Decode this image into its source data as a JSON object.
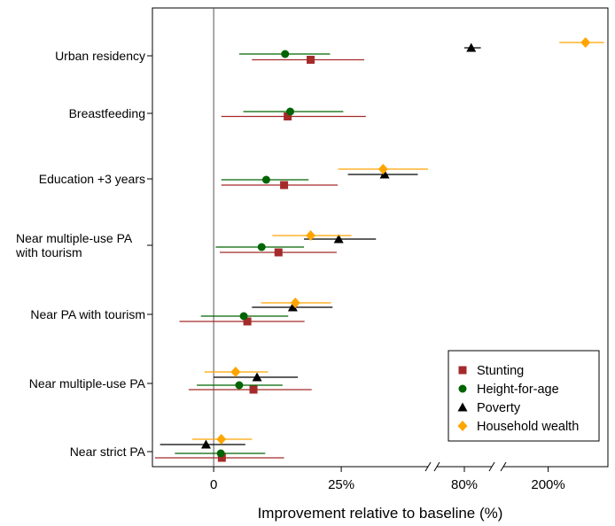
{
  "chart_data": {
    "type": "forest",
    "xlabel": "Improvement relative to baseline (%)",
    "x_axis": {
      "segments": [
        {
          "name": "main",
          "range": [
            -12,
            42
          ]
        },
        {
          "name": "break-1",
          "range": [
            70,
            90
          ]
        },
        {
          "name": "break-2",
          "range": [
            140,
            280
          ]
        }
      ],
      "ticks": [
        {
          "value": 0,
          "label": "0"
        },
        {
          "value": 25,
          "label": "25%"
        },
        {
          "value": 80,
          "label": "80%"
        },
        {
          "value": 200,
          "label": "200%"
        }
      ],
      "reference_line": 0
    },
    "categories": [
      "Urban residency",
      "Breastfeeding",
      "Education +3 years",
      "Near multiple-use PA\nwith tourism",
      "Near PA with tourism",
      "Near multiple-use PA",
      "Near strict PA"
    ],
    "series": [
      {
        "name": "Stunting",
        "color": "#a52a2a",
        "marker": "square",
        "points": [
          {
            "category": "Urban residency",
            "estimate": 19.0,
            "low": 7.5,
            "high": 29.5
          },
          {
            "category": "Breastfeeding",
            "estimate": 14.5,
            "low": 1.5,
            "high": 29.8
          },
          {
            "category": "Education +3 years",
            "estimate": 13.8,
            "low": 1.5,
            "high": 24.3
          },
          {
            "category": "Near multiple-use PA\nwith tourism",
            "estimate": 12.7,
            "low": 1.2,
            "high": 24.1
          },
          {
            "category": "Near PA with tourism",
            "estimate": 6.6,
            "low": -6.7,
            "high": 17.8
          },
          {
            "category": "Near multiple-use PA",
            "estimate": 7.8,
            "low": -4.9,
            "high": 19.2
          },
          {
            "category": "Near strict PA",
            "estimate": 1.6,
            "low": -11.5,
            "high": 13.8
          }
        ]
      },
      {
        "name": "Height-for-age",
        "color": "#006400",
        "marker": "circle",
        "points": [
          {
            "category": "Urban residency",
            "estimate": 14.0,
            "low": 5.0,
            "high": 22.8
          },
          {
            "category": "Breastfeeding",
            "estimate": 15.0,
            "low": 5.8,
            "high": 25.4
          },
          {
            "category": "Education +3 years",
            "estimate": 10.3,
            "low": 1.5,
            "high": 18.6
          },
          {
            "category": "Near multiple-use PA\nwith tourism",
            "estimate": 9.4,
            "low": 0.4,
            "high": 17.7
          },
          {
            "category": "Near PA with tourism",
            "estimate": 5.9,
            "low": -2.5,
            "high": 14.6
          },
          {
            "category": "Near multiple-use PA",
            "estimate": 5.0,
            "low": -3.3,
            "high": 13.5
          },
          {
            "category": "Near strict PA",
            "estimate": 1.4,
            "low": -7.6,
            "high": 10.1
          }
        ]
      },
      {
        "name": "Poverty",
        "color": "#000000",
        "marker": "triangle",
        "points": [
          {
            "category": "Urban residency",
            "estimate": 82.5,
            "low": 80.0,
            "high": 86.0
          },
          {
            "category": "Education +3 years",
            "estimate": 33.5,
            "low": 26.3,
            "high": 40.0
          },
          {
            "category": "Near multiple-use PA\nwith tourism",
            "estimate": 24.5,
            "low": 17.7,
            "high": 31.8
          },
          {
            "category": "Near PA with tourism",
            "estimate": 15.5,
            "low": 7.5,
            "high": 23.3
          },
          {
            "category": "Near multiple-use PA",
            "estimate": 8.5,
            "low": 0.0,
            "high": 16.5
          },
          {
            "category": "Near strict PA",
            "estimate": -1.5,
            "low": -10.5,
            "high": 6.2
          }
        ]
      },
      {
        "name": "Household wealth",
        "color": "#ffa500",
        "marker": "diamond",
        "points": [
          {
            "category": "Urban residency",
            "estimate": 250.0,
            "low": 215.0,
            "high": 275.0
          },
          {
            "category": "Education +3 years",
            "estimate": 33.2,
            "low": 24.4,
            "high": 42.0
          },
          {
            "category": "Near multiple-use PA\nwith tourism",
            "estimate": 19.0,
            "low": 11.5,
            "high": 27.0
          },
          {
            "category": "Near PA with tourism",
            "estimate": 16.0,
            "low": 9.3,
            "high": 23.0
          },
          {
            "category": "Near multiple-use PA",
            "estimate": 4.3,
            "low": -1.8,
            "high": 10.7
          },
          {
            "category": "Near strict PA",
            "estimate": 1.5,
            "low": -4.2,
            "high": 7.5
          }
        ]
      }
    ],
    "legend": {
      "placement": "bottom-right"
    },
    "grid": false
  }
}
